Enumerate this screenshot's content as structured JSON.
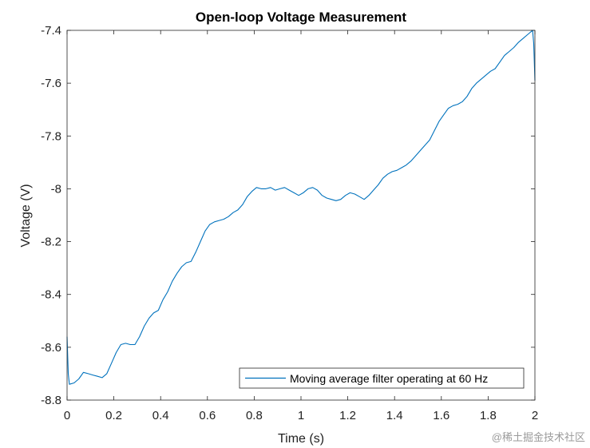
{
  "chart_data": {
    "type": "line",
    "title": "Open-loop Voltage Measurement",
    "xlabel": "Time (s)",
    "ylabel": "Voltage (V)",
    "xlim": [
      0,
      2
    ],
    "ylim": [
      -8.8,
      -7.4
    ],
    "xticks": [
      0,
      0.2,
      0.4,
      0.6,
      0.8,
      1,
      1.2,
      1.4,
      1.6,
      1.8,
      2
    ],
    "xtick_labels": [
      "0",
      "0.2",
      "0.4",
      "0.6",
      "0.8",
      "1",
      "1.2",
      "1.4",
      "1.6",
      "1.8",
      "2"
    ],
    "yticks": [
      -7.4,
      -7.6,
      -7.8,
      -8,
      -8.2,
      -8.4,
      -8.6,
      -8.8
    ],
    "ytick_labels": [
      "-7.4",
      "-7.6",
      "-7.8",
      "-8",
      "-8.2",
      "-8.4",
      "-8.6",
      "-8.8"
    ],
    "grid": false,
    "legend_position": "bottom-right",
    "series": [
      {
        "name": "Moving average filter operating at 60 Hz",
        "color": "#0072BD",
        "x": [
          0,
          0.005,
          0.01,
          0.03,
          0.05,
          0.07,
          0.09,
          0.11,
          0.13,
          0.15,
          0.17,
          0.19,
          0.21,
          0.23,
          0.25,
          0.27,
          0.29,
          0.31,
          0.33,
          0.35,
          0.37,
          0.39,
          0.41,
          0.43,
          0.45,
          0.47,
          0.49,
          0.51,
          0.53,
          0.55,
          0.57,
          0.59,
          0.61,
          0.63,
          0.65,
          0.67,
          0.69,
          0.71,
          0.73,
          0.75,
          0.77,
          0.79,
          0.81,
          0.83,
          0.85,
          0.87,
          0.89,
          0.91,
          0.93,
          0.95,
          0.97,
          0.99,
          1.01,
          1.03,
          1.05,
          1.07,
          1.09,
          1.11,
          1.13,
          1.15,
          1.17,
          1.19,
          1.21,
          1.23,
          1.25,
          1.27,
          1.29,
          1.31,
          1.33,
          1.35,
          1.37,
          1.39,
          1.41,
          1.43,
          1.45,
          1.47,
          1.49,
          1.51,
          1.53,
          1.55,
          1.57,
          1.59,
          1.61,
          1.63,
          1.65,
          1.67,
          1.69,
          1.71,
          1.73,
          1.75,
          1.77,
          1.79,
          1.81,
          1.83,
          1.85,
          1.87,
          1.89,
          1.91,
          1.93,
          1.95,
          1.97,
          1.99,
          1.995,
          2.0
        ],
        "y": [
          -8.56,
          -8.7,
          -8.74,
          -8.735,
          -8.72,
          -8.695,
          -8.7,
          -8.705,
          -8.71,
          -8.715,
          -8.7,
          -8.66,
          -8.62,
          -8.59,
          -8.585,
          -8.59,
          -8.59,
          -8.56,
          -8.52,
          -8.49,
          -8.47,
          -8.46,
          -8.42,
          -8.39,
          -8.35,
          -8.32,
          -8.295,
          -8.28,
          -8.275,
          -8.24,
          -8.2,
          -8.16,
          -8.135,
          -8.125,
          -8.12,
          -8.115,
          -8.105,
          -8.09,
          -8.08,
          -8.06,
          -8.03,
          -8.01,
          -7.995,
          -8.0,
          -8.0,
          -7.995,
          -8.005,
          -8.0,
          -7.995,
          -8.005,
          -8.015,
          -8.025,
          -8.015,
          -8.0,
          -7.995,
          -8.005,
          -8.025,
          -8.035,
          -8.04,
          -8.045,
          -8.04,
          -8.025,
          -8.015,
          -8.02,
          -8.03,
          -8.04,
          -8.025,
          -8.005,
          -7.985,
          -7.96,
          -7.945,
          -7.935,
          -7.93,
          -7.92,
          -7.91,
          -7.895,
          -7.875,
          -7.855,
          -7.835,
          -7.815,
          -7.78,
          -7.745,
          -7.72,
          -7.695,
          -7.685,
          -7.68,
          -7.67,
          -7.65,
          -7.62,
          -7.6,
          -7.585,
          -7.57,
          -7.555,
          -7.545,
          -7.52,
          -7.495,
          -7.48,
          -7.465,
          -7.445,
          -7.43,
          -7.415,
          -7.4,
          -7.45,
          -7.59
        ]
      }
    ]
  },
  "watermark_text": "@稀土掘金技术社区"
}
